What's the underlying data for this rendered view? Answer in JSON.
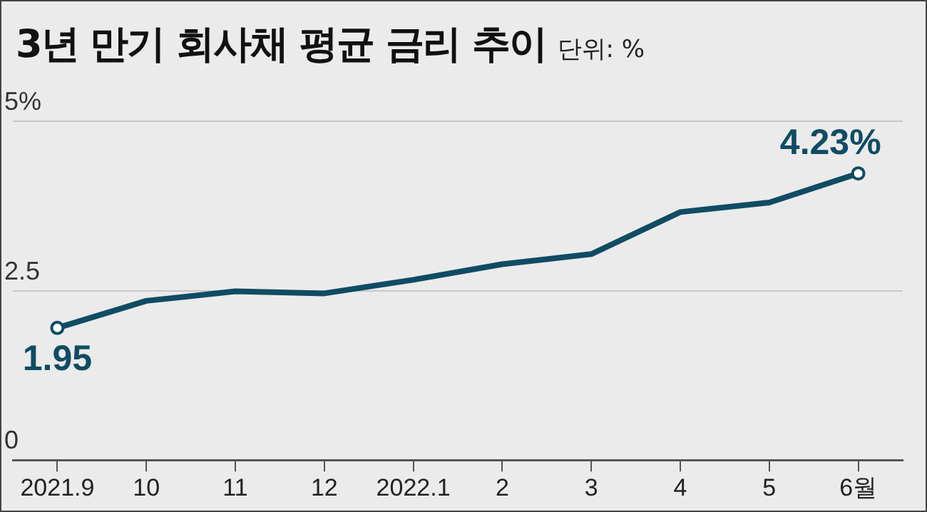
{
  "chart_data": {
    "type": "line",
    "title": "3년 만기 회사채 평균 금리 추이",
    "subtitle": "단위: %",
    "categories": [
      "2021.9",
      "10",
      "11",
      "12",
      "2022.1",
      "2",
      "3",
      "4",
      "5",
      "6월"
    ],
    "series": [
      {
        "color": "#0f4c63",
        "values": [
          1.95,
          2.35,
          2.49,
          2.46,
          2.66,
          2.89,
          3.04,
          3.66,
          3.8,
          4.23
        ],
        "value_labels": [
          "1.95",
          null,
          null,
          null,
          null,
          null,
          null,
          null,
          null,
          "4.23%"
        ]
      }
    ],
    "ylim": [
      0,
      5
    ],
    "yticks": [
      0,
      2.5,
      {
        "value": 5,
        "label": "5%"
      }
    ],
    "grid": "y",
    "legend": false,
    "line_style": "solid"
  }
}
